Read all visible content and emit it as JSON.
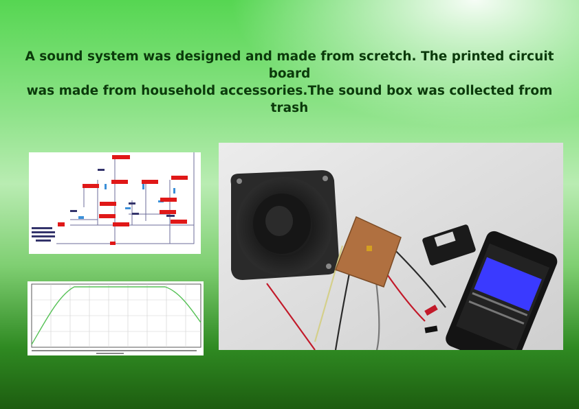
{
  "headline": {
    "line1": "A sound system was designed and made from scretch. The printed circuit board",
    "line2": "was made from household accessories.The sound box was collected from trash"
  },
  "colors": {
    "background_top": "#56d652",
    "background_bottom": "#1d5d10",
    "headline_text": "#0b3a0b",
    "probe_label": "#e01818",
    "frequency_curve": "#55c155"
  },
  "images": {
    "schematic": "circuit-schematic",
    "frequency_plot": "frequency-response-plot",
    "photo": "speaker-pcb-phone-photo"
  }
}
